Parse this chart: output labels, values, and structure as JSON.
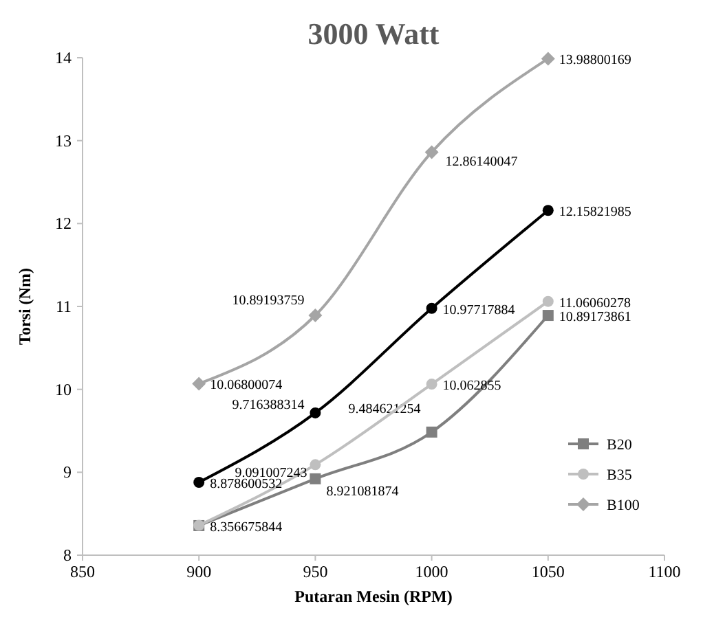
{
  "chart_data": {
    "type": "line",
    "title": "3000 Watt",
    "xlabel": "Putaran Mesin (RPM)",
    "ylabel": "Torsi (Nm)",
    "x": [
      900,
      950,
      1000,
      1050
    ],
    "xlim": [
      850,
      1100
    ],
    "xticks": [
      850,
      900,
      950,
      1000,
      1050,
      1100
    ],
    "ylim": [
      8,
      14
    ],
    "yticks": [
      8,
      9,
      10,
      11,
      12,
      13,
      14
    ],
    "grid": false,
    "legend": "bottom right",
    "series": [
      {
        "name": "B20",
        "color": "#7f7f7f",
        "marker": "square",
        "values": [
          8.356675844,
          8.921081874,
          9.484621254,
          10.89173861
        ],
        "value_labels": [
          "8.356675844",
          "8.921081874",
          "9.484621254",
          "10.89173861"
        ]
      },
      {
        "name": "B35",
        "color": "#bfbfbf",
        "marker": "circle",
        "values": [
          8.36,
          9.091007243,
          10.062855,
          11.06060278
        ],
        "value_labels": [
          null,
          "9.091007243",
          "10.062855",
          "11.06060278"
        ]
      },
      {
        "name": "B100",
        "color": "#a5a5a5",
        "marker": "diamond",
        "values": [
          10.06800074,
          10.89193759,
          12.86140047,
          13.98800169
        ],
        "value_labels": [
          "10.06800074",
          "10.89193759",
          "12.86140047",
          "13.98800169"
        ]
      },
      {
        "color": "#000000",
        "marker": "circle",
        "values": [
          8.878600532,
          9.716388314,
          10.97717884,
          12.15821985
        ],
        "value_labels": [
          "8.878600532",
          "9.716388314",
          "10.97717884",
          "12.15821985"
        ]
      }
    ]
  }
}
